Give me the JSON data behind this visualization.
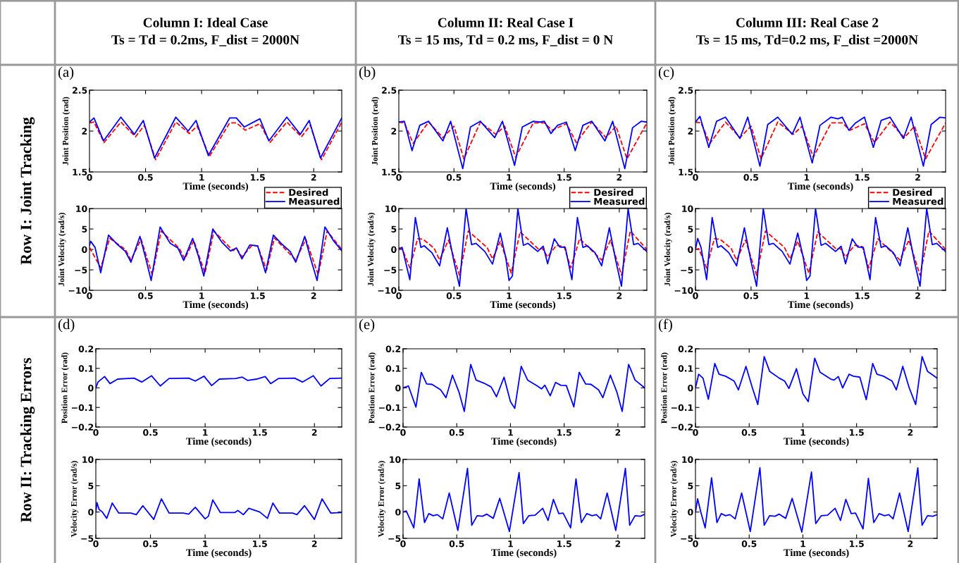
{
  "chart_data": [
    {
      "type": "line",
      "title": "Column I: Ideal Case\nTs = Td = 0.2ms, F_dist = 2000N",
      "annotations": [
        "(a)",
        "Row I: Joint Tracking"
      ],
      "xlabel": "Time (seconds)",
      "ylabel": "Joint Position (rad)",
      "xlim": [
        0,
        2.25
      ],
      "xticks": [
        0,
        0.5,
        1,
        1.5,
        2
      ],
      "ylim": [
        1.5,
        2.5
      ],
      "yticks": [
        1.5,
        2,
        2.5
      ],
      "grid": false,
      "series": [
        {
          "color": "#ff0000",
          "line_style": "dashed",
          "x": [
            0,
            0.04,
            0.13,
            0.28,
            0.41,
            0.49,
            0.59,
            0.77,
            0.89,
            0.96,
            1.07,
            1.25,
            1.31,
            1.39,
            1.52,
            1.61,
            1.76,
            1.89,
            1.97,
            2.07,
            2.25
          ],
          "values": [
            2.1,
            2.11,
            1.86,
            2.11,
            1.93,
            2.07,
            1.65,
            2.11,
            1.97,
            2.06,
            1.69,
            2.1,
            2.1,
            2.01,
            2.09,
            1.86,
            2.11,
            1.93,
            2.07,
            1.65,
            2.11
          ]
        },
        {
          "color": "#0000ff",
          "line_style": "solid",
          "x": [
            0,
            0.04,
            0.125,
            0.28,
            0.4,
            0.48,
            0.58,
            0.77,
            0.88,
            0.95,
            1.06,
            1.25,
            1.31,
            1.38,
            1.52,
            1.6,
            1.76,
            1.88,
            1.96,
            2.06,
            2.25
          ],
          "values": [
            2.11,
            2.16,
            1.88,
            2.17,
            1.96,
            2.13,
            1.67,
            2.17,
            2.0,
            2.13,
            1.7,
            2.16,
            2.16,
            2.05,
            2.15,
            1.88,
            2.17,
            1.96,
            2.13,
            1.67,
            2.16
          ]
        }
      ]
    },
    {
      "type": "line",
      "title": "Column II: Real Case I\nTs = 15 ms, Td = 0.2 ms, F_dist = 0 N",
      "annotations": [
        "(b)"
      ],
      "xlabel": "Time (seconds)",
      "ylabel": "Joint Position (rad)",
      "xlim": [
        0,
        2.25
      ],
      "xticks": [
        0,
        0.5,
        1,
        1.5,
        2
      ],
      "ylim": [
        1.5,
        2.5
      ],
      "yticks": [
        1.5,
        2,
        2.5
      ],
      "grid": false,
      "series": [
        {
          "color": "#ff0000",
          "line_style": "dashed",
          "x": [
            0,
            0.05,
            0.13,
            0.27,
            0.4,
            0.5,
            0.59,
            0.74,
            0.88,
            0.96,
            1.06,
            1.22,
            1.32,
            1.39,
            1.52,
            1.61,
            1.75,
            1.88,
            1.97,
            2.07,
            2.25
          ],
          "values": [
            2.11,
            2.1,
            1.85,
            2.11,
            1.92,
            2.06,
            1.66,
            2.11,
            1.96,
            2.06,
            1.68,
            2.1,
            2.1,
            2.01,
            2.09,
            1.86,
            2.11,
            1.92,
            2.06,
            1.66,
            2.1
          ]
        },
        {
          "color": "#0000ff",
          "line_style": "solid",
          "x": [
            0,
            0.05,
            0.12,
            0.19,
            0.27,
            0.4,
            0.47,
            0.58,
            0.65,
            0.74,
            0.87,
            0.94,
            1.05,
            1.12,
            1.22,
            1.28,
            1.32,
            1.38,
            1.44,
            1.52,
            1.6,
            1.67,
            1.75,
            1.87,
            1.94,
            2.05,
            2.12,
            2.2,
            2.25
          ],
          "values": [
            2.11,
            2.12,
            1.76,
            2.07,
            2.12,
            1.88,
            2.12,
            1.54,
            2.05,
            2.12,
            1.92,
            2.12,
            1.58,
            2.05,
            2.12,
            2.11,
            2.12,
            1.97,
            2.07,
            2.11,
            1.76,
            2.07,
            2.12,
            1.88,
            2.12,
            1.54,
            2.04,
            2.12,
            2.11
          ]
        }
      ]
    },
    {
      "type": "line",
      "title": "Column III: Real Case 2\nTs = 15 ms, Td=0.2 ms, F_dist =2000N",
      "annotations": [
        "(c)"
      ],
      "xlabel": "Time (seconds)",
      "ylabel": "Joint Position (rad)",
      "xlim": [
        0,
        2.25
      ],
      "xticks": [
        0,
        0.5,
        1,
        1.5,
        2
      ],
      "ylim": [
        1.5,
        2.5
      ],
      "yticks": [
        1.5,
        2,
        2.5
      ],
      "grid": false,
      "series": [
        {
          "color": "#ff0000",
          "line_style": "dashed",
          "x": [
            0,
            0.05,
            0.13,
            0.27,
            0.4,
            0.5,
            0.59,
            0.74,
            0.88,
            0.96,
            1.06,
            1.22,
            1.32,
            1.39,
            1.52,
            1.61,
            1.75,
            1.88,
            1.97,
            2.07,
            2.25
          ],
          "values": [
            2.11,
            2.1,
            1.85,
            2.11,
            1.92,
            2.06,
            1.66,
            2.11,
            1.96,
            2.06,
            1.68,
            2.1,
            2.1,
            2.01,
            2.09,
            1.86,
            2.11,
            1.92,
            2.06,
            1.66,
            2.1
          ]
        },
        {
          "color": "#0000ff",
          "line_style": "solid",
          "x": [
            0,
            0.04,
            0.12,
            0.19,
            0.27,
            0.4,
            0.47,
            0.58,
            0.65,
            0.74,
            0.87,
            0.94,
            1.05,
            1.12,
            1.22,
            1.28,
            1.32,
            1.38,
            1.44,
            1.52,
            1.6,
            1.67,
            1.75,
            1.87,
            1.94,
            2.05,
            2.12,
            2.2,
            2.25
          ],
          "values": [
            2.11,
            2.18,
            1.8,
            2.12,
            2.17,
            1.91,
            2.17,
            1.57,
            2.08,
            2.17,
            1.96,
            2.17,
            1.61,
            2.07,
            2.17,
            2.15,
            2.17,
            2.01,
            2.1,
            2.17,
            1.8,
            2.13,
            2.17,
            1.91,
            2.17,
            1.57,
            2.08,
            2.17,
            2.16
          ]
        }
      ]
    },
    {
      "type": "line",
      "xlabel": "Time (seconds)",
      "ylabel": "Joint Velocity (rad/s)",
      "xlim": [
        0,
        2.25
      ],
      "xticks": [
        0,
        0.5,
        1,
        1.5,
        2
      ],
      "ylim": [
        -10,
        10
      ],
      "yticks": [
        {
          "value": -10,
          "label": "−10"
        },
        {
          "value": -5,
          "label": "−5"
        },
        0,
        5,
        10
      ],
      "grid": false,
      "legend": "top right",
      "series": [
        {
          "name": "Desired",
          "color": "#ff0000",
          "line_style": "dashed",
          "x": [
            0,
            0.1,
            0.18,
            0.32,
            0.37,
            0.46,
            0.56,
            0.64,
            0.8,
            0.85,
            0.93,
            1.03,
            1.11,
            1.28,
            1.31,
            1.36,
            1.45,
            1.5,
            1.58,
            1.65,
            1.84,
            1.93,
            2.04,
            2.12,
            2.25
          ],
          "values": [
            0.5,
            -4.5,
            2.7,
            0,
            -2.6,
            2.5,
            -6.2,
            4.5,
            0.3,
            -2.3,
            2.2,
            -5.8,
            4.5,
            -0.3,
            0.3,
            -1.8,
            1.0,
            0.8,
            -5,
            2.8,
            -2.6,
            2.5,
            -6.2,
            4.5,
            0
          ]
        },
        {
          "name": "Measured",
          "color": "#0000ff",
          "line_style": "solid",
          "x": [
            0,
            0.01,
            0.05,
            0.1,
            0.17,
            0.25,
            0.32,
            0.37,
            0.45,
            0.5,
            0.55,
            0.63,
            0.72,
            0.79,
            0.84,
            0.92,
            0.97,
            1.02,
            1.1,
            1.18,
            1.26,
            1.31,
            1.36,
            1.43,
            1.5,
            1.57,
            1.64,
            1.72,
            1.79,
            1.84,
            1.92,
            1.97,
            2.03,
            2.1,
            2.18,
            2.25
          ],
          "values": [
            1.0,
            2.0,
            0.5,
            -5.7,
            3.5,
            1.2,
            -0.5,
            -3.1,
            3.2,
            -2,
            -7.6,
            5.5,
            1.5,
            0.3,
            -2.7,
            2.7,
            -1.5,
            -6.5,
            5.0,
            1.8,
            -0.4,
            0.4,
            -2.3,
            1.1,
            0.9,
            -5.7,
            3.5,
            1.2,
            -0.5,
            -3.1,
            3.2,
            -2,
            -7.6,
            5.5,
            2.0,
            -0.3
          ]
        }
      ]
    },
    {
      "type": "line",
      "xlabel": "Time (seconds)",
      "ylabel": "Joint Velocity (rad/s)",
      "xlim": [
        0,
        2.25
      ],
      "xticks": [
        0,
        0.5,
        1,
        1.5,
        2
      ],
      "ylim": [
        -10,
        10
      ],
      "yticks": [
        {
          "value": -10,
          "label": "−10"
        },
        {
          "value": -5,
          "label": "−5"
        },
        0,
        5,
        10
      ],
      "grid": false,
      "legend": "top right",
      "series": [
        {
          "name": "Desired",
          "color": "#ff0000",
          "line_style": "dashed",
          "x": [
            0,
            0.03,
            0.1,
            0.17,
            0.22,
            0.32,
            0.37,
            0.45,
            0.55,
            0.63,
            0.8,
            0.85,
            0.92,
            1.02,
            1.1,
            1.27,
            1.3,
            1.35,
            1.43,
            1.5,
            1.56,
            1.64,
            1.84,
            1.92,
            2.02,
            2.1,
            2.25
          ],
          "values": [
            0.3,
            0.2,
            -4.5,
            2.6,
            2.5,
            0.3,
            -2.6,
            2.3,
            -6.3,
            4.5,
            0.5,
            -2.3,
            2.0,
            -5.8,
            4.3,
            0,
            0.3,
            -1.8,
            1.0,
            0.7,
            -4.5,
            2.6,
            -2.6,
            2.3,
            -6.3,
            4.5,
            0
          ]
        },
        {
          "name": "Measured",
          "color": "#0000ff",
          "line_style": "solid",
          "x": [
            0,
            0.03,
            0.1,
            0.15,
            0.2,
            0.23,
            0.3,
            0.37,
            0.44,
            0.5,
            0.55,
            0.61,
            0.66,
            0.7,
            0.78,
            0.85,
            0.92,
            0.97,
            1.0,
            1.03,
            1.08,
            1.13,
            1.17,
            1.26,
            1.31,
            1.35,
            1.41,
            1.46,
            1.51,
            1.57,
            1.62,
            1.67,
            1.71,
            1.78,
            1.84,
            1.91,
            1.97,
            2.02,
            2.08,
            2.13,
            2.17,
            2.25
          ],
          "values": [
            0.2,
            0.5,
            -7.4,
            7.8,
            0.5,
            0.9,
            -0.8,
            -4.0,
            5.3,
            -3,
            -9,
            10,
            1.2,
            1.5,
            -0.5,
            -3.6,
            4.0,
            -2,
            -7.6,
            -6.5,
            10,
            1.0,
            1.5,
            -0.5,
            0.8,
            -3.5,
            2.6,
            0.6,
            0.5,
            -7.4,
            7.8,
            0.5,
            0.9,
            -0.8,
            -4.0,
            5.3,
            -3,
            -9,
            10,
            1.2,
            1.5,
            -0.5
          ]
        }
      ]
    },
    {
      "type": "line",
      "xlabel": "Time (seconds)",
      "ylabel": "Joint Velocity (rad/s)",
      "xlim": [
        0,
        2.25
      ],
      "xticks": [
        0,
        0.5,
        1,
        1.5,
        2
      ],
      "ylim": [
        -10,
        10
      ],
      "yticks": [
        {
          "value": -10,
          "label": "−10"
        },
        {
          "value": -5,
          "label": "−5"
        },
        0,
        5,
        10
      ],
      "grid": false,
      "legend": "top right",
      "series": [
        {
          "name": "Desired",
          "color": "#ff0000",
          "line_style": "dashed",
          "x": [
            0,
            0.03,
            0.1,
            0.17,
            0.22,
            0.32,
            0.37,
            0.45,
            0.55,
            0.63,
            0.8,
            0.85,
            0.92,
            1.02,
            1.1,
            1.27,
            1.3,
            1.35,
            1.43,
            1.5,
            1.56,
            1.64,
            1.84,
            1.92,
            2.02,
            2.1,
            2.25
          ],
          "values": [
            0,
            0.2,
            -4.5,
            2.6,
            2.5,
            0.3,
            -2.6,
            2.3,
            -6.3,
            4.5,
            0.5,
            -2.3,
            2.0,
            -5.8,
            4.3,
            0,
            0.3,
            -1.8,
            1.0,
            0.7,
            -4.5,
            2.6,
            -2.6,
            2.3,
            -6.3,
            4.5,
            0
          ]
        },
        {
          "name": "Measured",
          "color": "#0000ff",
          "line_style": "solid",
          "x": [
            0,
            0.02,
            0.05,
            0.1,
            0.15,
            0.2,
            0.23,
            0.3,
            0.37,
            0.44,
            0.5,
            0.55,
            0.61,
            0.66,
            0.7,
            0.78,
            0.85,
            0.92,
            0.97,
            1.0,
            1.03,
            1.08,
            1.13,
            1.17,
            1.26,
            1.31,
            1.35,
            1.41,
            1.46,
            1.51,
            1.57,
            1.62,
            1.67,
            1.71,
            1.78,
            1.84,
            1.91,
            1.97,
            2.02,
            2.08,
            2.13,
            2.17,
            2.25
          ],
          "values": [
            0,
            2.7,
            0.5,
            -7.4,
            7.8,
            0.5,
            0.9,
            -0.8,
            -4.0,
            5.3,
            -3,
            -9,
            10,
            1.2,
            1.5,
            -0.5,
            -3.6,
            4.0,
            -2,
            -7.6,
            -6.5,
            10,
            1.0,
            1.5,
            -0.5,
            0.8,
            -3.5,
            2.6,
            0.6,
            0.5,
            -7.4,
            7.8,
            0.5,
            0.9,
            -0.8,
            -4.0,
            5.3,
            -3,
            -9,
            10,
            1.2,
            1.5,
            -0.5
          ]
        }
      ]
    },
    {
      "type": "line",
      "annotations": [
        "(d)",
        "Row II: Tracking Errors"
      ],
      "xlabel": "Time (seconds)",
      "ylabel": "Position Error (rad)",
      "xlim": [
        0,
        2.25
      ],
      "xticks": [
        0,
        0.5,
        1,
        1.5,
        2
      ],
      "ylim": [
        -0.2,
        0.2
      ],
      "yticks": [
        {
          "value": -0.2,
          "label": "−0.2"
        },
        {
          "value": -0.1,
          "label": "−0.1"
        },
        0,
        0.1,
        0.2
      ],
      "grid": false,
      "series": [
        {
          "color": "#0000ff",
          "line_style": "solid",
          "x": [
            0,
            0.02,
            0.08,
            0.13,
            0.2,
            0.35,
            0.42,
            0.51,
            0.59,
            0.67,
            0.85,
            0.91,
            0.99,
            1.06,
            1.13,
            1.28,
            1.34,
            1.39,
            1.47,
            1.55,
            1.6,
            1.67,
            1.82,
            1.89,
            1.99,
            2.06,
            2.14,
            2.25
          ],
          "values": [
            0,
            0.03,
            0.058,
            0.022,
            0.045,
            0.05,
            0.03,
            0.062,
            0.01,
            0.048,
            0.05,
            0.035,
            0.06,
            0.012,
            0.045,
            0.048,
            0.055,
            0.038,
            0.045,
            0.058,
            0.022,
            0.048,
            0.05,
            0.03,
            0.062,
            0.01,
            0.048,
            0.05
          ]
        }
      ]
    },
    {
      "type": "line",
      "annotations": [
        "(e)"
      ],
      "xlabel": "Time (seconds)",
      "ylabel": "Position Error (rad)",
      "xlim": [
        0,
        2.25
      ],
      "xticks": [
        0,
        0.5,
        1,
        1.5,
        2
      ],
      "ylim": [
        -0.2,
        0.2
      ],
      "yticks": [
        {
          "value": -0.2,
          "label": "−0.2"
        },
        {
          "value": -0.1,
          "label": "−0.1"
        },
        0,
        0.1,
        0.2
      ],
      "grid": false,
      "series": [
        {
          "color": "#0000ff",
          "line_style": "solid",
          "x": [
            0,
            0.05,
            0.12,
            0.17,
            0.22,
            0.27,
            0.35,
            0.4,
            0.46,
            0.52,
            0.57,
            0.63,
            0.68,
            0.75,
            0.82,
            0.87,
            0.94,
            1.0,
            1.04,
            1.1,
            1.16,
            1.25,
            1.29,
            1.32,
            1.37,
            1.42,
            1.47,
            1.52,
            1.59,
            1.64,
            1.7,
            1.75,
            1.82,
            1.86,
            1.93,
            1.99,
            2.04,
            2.1,
            2.16,
            2.25
          ],
          "values": [
            0,
            0.01,
            -0.098,
            0.08,
            0.02,
            0.018,
            -0.01,
            -0.05,
            0.065,
            -0.02,
            -0.12,
            0.12,
            0.04,
            0.025,
            0.005,
            -0.045,
            0.055,
            -0.07,
            -0.105,
            0.11,
            0.04,
            0.01,
            -0.005,
            0.014,
            -0.04,
            0.028,
            0.013,
            0.012,
            -0.097,
            0.08,
            0.02,
            0.018,
            -0.01,
            -0.05,
            0.065,
            -0.02,
            -0.12,
            0.12,
            0.04,
            0
          ]
        }
      ]
    },
    {
      "type": "line",
      "annotations": [
        "(f)"
      ],
      "xlabel": "Time (seconds)",
      "ylabel": "Position Error (rad)",
      "xlim": [
        0,
        2.25
      ],
      "xticks": [
        0,
        0.5,
        1,
        1.5,
        2
      ],
      "ylim": [
        -0.2,
        0.2
      ],
      "yticks": [
        {
          "value": -0.2,
          "label": "−0.2"
        },
        {
          "value": -0.1,
          "label": "−0.1"
        },
        0,
        0.1,
        0.2
      ],
      "grid": false,
      "series": [
        {
          "color": "#0000ff",
          "line_style": "solid",
          "x": [
            0,
            0.03,
            0.07,
            0.12,
            0.18,
            0.22,
            0.28,
            0.36,
            0.4,
            0.47,
            0.53,
            0.58,
            0.64,
            0.69,
            0.78,
            0.83,
            0.87,
            0.94,
            1.0,
            1.05,
            1.11,
            1.16,
            1.26,
            1.29,
            1.33,
            1.37,
            1.43,
            1.47,
            1.53,
            1.59,
            1.65,
            1.69,
            1.75,
            1.83,
            1.87,
            1.93,
            1.99,
            2.05,
            2.11,
            2.16,
            2.25
          ],
          "values": [
            0,
            0.07,
            0.05,
            -0.058,
            0.125,
            0.07,
            0.06,
            0.035,
            -0.01,
            0.11,
            0,
            -0.085,
            0.16,
            0.085,
            0.05,
            0.035,
            -0.003,
            0.098,
            -0.03,
            -0.07,
            0.152,
            0.08,
            0.045,
            0.04,
            0.058,
            0,
            0.07,
            0.06,
            0.055,
            -0.06,
            0.125,
            0.07,
            0.06,
            0.035,
            -0.01,
            0.11,
            0,
            -0.085,
            0.16,
            0.085,
            0.05
          ]
        }
      ]
    },
    {
      "type": "line",
      "xlabel": "Time (seconds)",
      "ylabel": "Velocity Error (rad/s)",
      "xlim": [
        0,
        2.25
      ],
      "xticks": [
        0,
        0.5,
        1,
        1.5,
        2
      ],
      "ylim": [
        -5,
        10
      ],
      "yticks": [
        {
          "value": -5,
          "label": "−5"
        },
        0,
        5,
        10
      ],
      "grid": false,
      "series": [
        {
          "color": "#0000ff",
          "line_style": "solid",
          "x": [
            0,
            0.01,
            0.03,
            0.06,
            0.1,
            0.15,
            0.21,
            0.32,
            0.37,
            0.43,
            0.53,
            0.6,
            0.67,
            0.8,
            0.85,
            0.91,
            1.0,
            1.03,
            1.07,
            1.14,
            1.27,
            1.3,
            1.35,
            1.4,
            1.5,
            1.57,
            1.62,
            1.68,
            1.8,
            1.84,
            1.91,
            2.0,
            2.07,
            2.15,
            2.25
          ],
          "values": [
            0,
            1.8,
            0.5,
            0,
            -1.2,
            1.7,
            -0.2,
            -0.2,
            -0.5,
            1.2,
            -1.4,
            2.5,
            -0.2,
            -0.2,
            -0.4,
            0.9,
            -1.3,
            -0.8,
            2.3,
            -0.1,
            -0.1,
            0.3,
            -0.5,
            0.7,
            0,
            -1.2,
            1.7,
            -0.2,
            -0.2,
            -0.5,
            1.2,
            -1.4,
            2.5,
            -0.2,
            -0.1
          ]
        }
      ]
    },
    {
      "type": "line",
      "xlabel": "Time (seconds)",
      "ylabel": "Velocity Error (rad/s)",
      "xlim": [
        0,
        2.25
      ],
      "xticks": [
        0,
        0.5,
        1,
        1.5,
        2
      ],
      "ylim": [
        -5,
        10
      ],
      "yticks": [
        {
          "value": -5,
          "label": "−5"
        },
        0,
        5,
        10
      ],
      "grid": false,
      "series": [
        {
          "color": "#0000ff",
          "line_style": "solid",
          "x": [
            0,
            0.03,
            0.1,
            0.15,
            0.2,
            0.24,
            0.28,
            0.32,
            0.37,
            0.43,
            0.51,
            0.6,
            0.64,
            0.69,
            0.74,
            0.78,
            0.84,
            0.9,
            0.99,
            1.08,
            1.12,
            1.17,
            1.23,
            1.3,
            1.35,
            1.4,
            1.45,
            1.49,
            1.56,
            1.61,
            1.66,
            1.71,
            1.76,
            1.8,
            1.84,
            1.9,
            1.98,
            2.07,
            2.11,
            2.16,
            2.21,
            2.25
          ],
          "values": [
            0,
            0.2,
            -3.0,
            6.3,
            -2.0,
            -0.3,
            -0.7,
            -0.5,
            -1.3,
            3.6,
            -3.5,
            8.3,
            -2.5,
            -0.7,
            -0.8,
            -0.4,
            -1.2,
            2.6,
            -3.7,
            7.5,
            -2.2,
            -0.7,
            -0.6,
            0.7,
            -1.6,
            2.4,
            -0.3,
            -0.2,
            -3.0,
            6.3,
            -2.0,
            -0.3,
            -0.7,
            -0.5,
            -1.3,
            3.6,
            -3.5,
            8.3,
            -2.5,
            -0.7,
            -0.8,
            -0.4
          ]
        }
      ]
    },
    {
      "type": "line",
      "xlabel": "Time (seconds)",
      "ylabel": "Velocity Error (rad/s)",
      "xlim": [
        0,
        2.25
      ],
      "xticks": [
        0,
        0.5,
        1,
        1.5,
        2
      ],
      "ylim": [
        -5,
        10
      ],
      "yticks": [
        {
          "value": -5,
          "label": "−5"
        },
        0,
        5,
        10
      ],
      "grid": false,
      "series": [
        {
          "color": "#0000ff",
          "line_style": "solid",
          "x": [
            0,
            0.02,
            0.05,
            0.09,
            0.15,
            0.2,
            0.24,
            0.28,
            0.32,
            0.37,
            0.43,
            0.51,
            0.6,
            0.64,
            0.69,
            0.74,
            0.78,
            0.84,
            0.9,
            0.99,
            1.08,
            1.12,
            1.17,
            1.23,
            1.3,
            1.35,
            1.4,
            1.45,
            1.49,
            1.56,
            1.61,
            1.66,
            1.71,
            1.76,
            1.8,
            1.84,
            1.9,
            1.98,
            2.07,
            2.11,
            2.16,
            2.21,
            2.25
          ],
          "values": [
            0,
            2.5,
            0,
            -3.0,
            6.5,
            -2.0,
            -0.3,
            -0.7,
            -0.5,
            -1.3,
            3.6,
            -3.7,
            8.4,
            -2.5,
            -0.7,
            -0.8,
            -0.4,
            -1.2,
            2.6,
            -3.8,
            7.6,
            -2.2,
            -0.7,
            -0.6,
            0.7,
            -1.6,
            2.4,
            -0.3,
            -0.2,
            -3.2,
            6.4,
            -2.0,
            -0.3,
            -0.7,
            -0.5,
            -1.3,
            3.6,
            -3.7,
            8.4,
            -2.5,
            -0.7,
            -0.8,
            -0.5
          ]
        }
      ]
    }
  ]
}
